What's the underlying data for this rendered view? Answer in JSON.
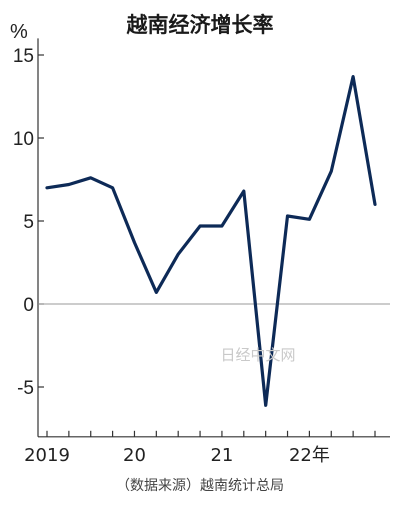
{
  "chart_data": {
    "type": "line",
    "title": "越南经济增长率",
    "unit": "%",
    "x": [
      "2019Q1",
      "2019Q2",
      "2019Q3",
      "2019Q4",
      "2020Q1",
      "2020Q2",
      "2020Q3",
      "2020Q4",
      "2021Q1",
      "2021Q2",
      "2021Q3",
      "2021Q4",
      "2022Q1",
      "2022Q2",
      "2022Q3",
      "2022Q4"
    ],
    "series": [
      {
        "values": [
          7.0,
          7.2,
          7.6,
          7.0,
          3.7,
          0.7,
          3.0,
          4.7,
          4.7,
          6.8,
          -6.1,
          5.3,
          5.1,
          8.0,
          13.7,
          6.0
        ]
      }
    ],
    "ylim": [
      -8,
      16
    ],
    "yticks": [
      -5,
      0,
      5,
      10,
      15
    ],
    "ytick_labels": [
      "-5",
      "0",
      "5",
      "10",
      "15"
    ],
    "year_ticks": [
      {
        "label": "2019",
        "at": 0
      },
      {
        "label": "20",
        "at": 4
      },
      {
        "label": "21",
        "at": 8
      },
      {
        "label": "22年",
        "at": 12
      }
    ],
    "source": "（数据来源）越南统计总局",
    "watermark": "日经中文网",
    "line_color": "#0d2a57",
    "zero_line_color": "#999999",
    "axis_color": "#333333"
  }
}
